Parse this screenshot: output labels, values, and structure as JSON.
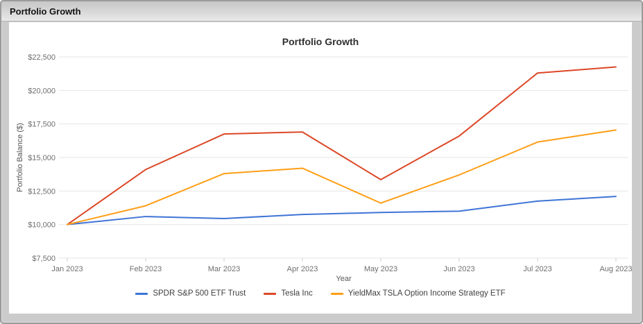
{
  "window": {
    "title": "Portfolio Growth"
  },
  "chart_data": {
    "type": "line",
    "title": "Portfolio Growth",
    "xlabel": "Year",
    "ylabel": "Portfolio Balance ($)",
    "categories": [
      "Jan 2023",
      "Feb 2023",
      "Mar 2023",
      "Apr 2023",
      "May 2023",
      "Jun 2023",
      "Jul 2023",
      "Aug 2023"
    ],
    "series": [
      {
        "name": "SPDR S&P 500 ETF Trust",
        "color": "#3e74d6",
        "values": [
          10000,
          10600,
          10450,
          10750,
          10900,
          11000,
          11750,
          12100
        ]
      },
      {
        "name": "Tesla Inc",
        "color": "#dc4726",
        "values": [
          10000,
          14100,
          16750,
          16900,
          13350,
          16600,
          21300,
          21750
        ]
      },
      {
        "name": "YieldMax TSLA Option Income Strategy ETF",
        "color": "#ff9e16",
        "values": [
          10000,
          11400,
          13800,
          14200,
          11600,
          13700,
          16150,
          17050
        ]
      }
    ],
    "ylim": [
      7500,
      22500
    ],
    "ytick_values": [
      7500,
      10000,
      12500,
      15000,
      17500,
      20000,
      22500
    ],
    "ytick_labels": [
      "$7,500",
      "$10,000",
      "$12,500",
      "$15,000",
      "$17,500",
      "$20,000",
      "$22,500"
    ],
    "grid": "horizontal",
    "legend_position": "bottom"
  },
  "style": {
    "grid_color": "#e6e6e6",
    "tick_color": "#cccccc",
    "tick_label_color": "#6e6e6e",
    "axis_title_color": "#555555"
  }
}
